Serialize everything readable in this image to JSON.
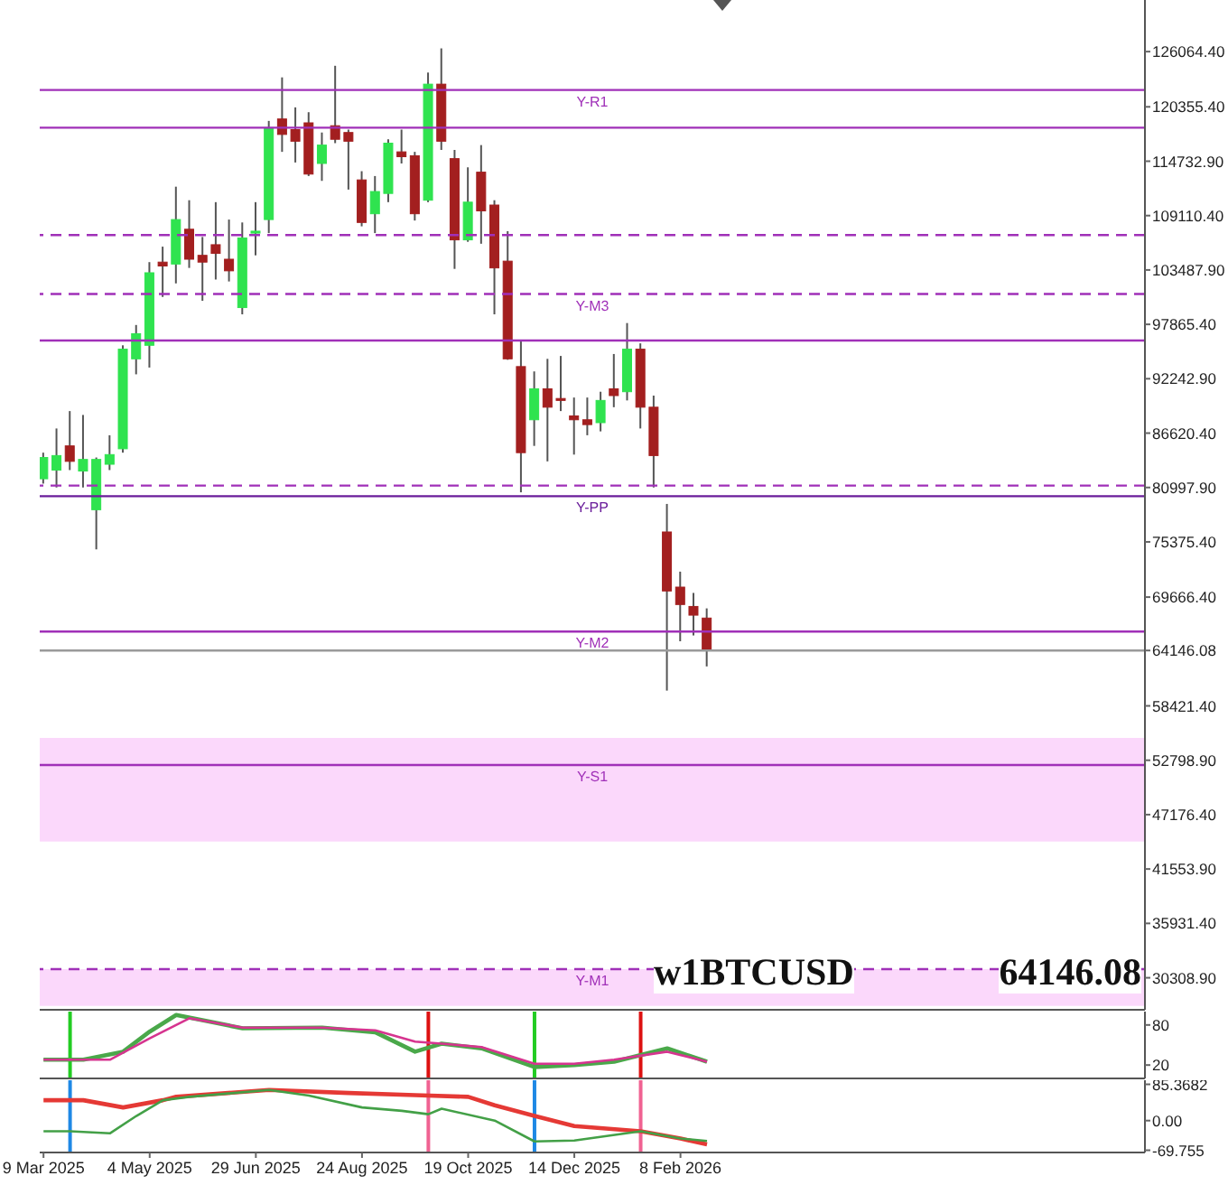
{
  "chart_data": [
    {
      "type": "candlestick",
      "tick_labels": "y",
      "x": [
        "2025-03-09",
        "2025-03-16",
        "2025-03-23",
        "2025-03-30",
        "2025-04-06",
        "2025-04-13",
        "2025-04-20",
        "2025-04-27",
        "2025-05-04",
        "2025-05-11",
        "2025-05-18",
        "2025-05-25",
        "2025-06-01",
        "2025-06-08",
        "2025-06-15",
        "2025-06-22",
        "2025-06-29",
        "2025-07-06",
        "2025-07-13",
        "2025-07-20",
        "2025-07-27",
        "2025-08-03",
        "2025-08-10",
        "2025-08-17",
        "2025-08-24",
        "2025-08-31",
        "2025-09-07",
        "2025-09-14",
        "2025-09-21",
        "2025-09-28",
        "2025-10-05",
        "2025-10-12",
        "2025-10-19",
        "2025-10-26",
        "2025-11-02",
        "2025-11-09",
        "2025-11-16",
        "2025-11-23",
        "2025-11-30",
        "2025-12-07",
        "2025-12-14",
        "2025-12-21",
        "2025-12-28",
        "2026-01-04",
        "2026-01-11",
        "2026-01-18",
        "2026-01-25",
        "2026-02-01",
        "2026-02-08",
        "2026-02-15",
        "2026-02-22"
      ],
      "ohlc": [
        [
          81900,
          84600,
          81400,
          84100
        ],
        [
          82800,
          87100,
          81000,
          84300
        ],
        [
          85300,
          88900,
          82800,
          83700
        ],
        [
          82700,
          88500,
          81000,
          83900
        ],
        [
          78700,
          84100,
          74600,
          83900
        ],
        [
          83400,
          86400,
          82800,
          84400
        ],
        [
          85000,
          95700,
          84600,
          95300
        ],
        [
          94300,
          97800,
          92700,
          96900
        ],
        [
          95700,
          104300,
          93400,
          103200
        ],
        [
          104300,
          105900,
          100700,
          103900
        ],
        [
          104100,
          112100,
          102100,
          108700
        ],
        [
          107700,
          110700,
          103700,
          104600
        ],
        [
          105000,
          106900,
          100300,
          104300
        ],
        [
          106100,
          110500,
          102500,
          105200
        ],
        [
          104600,
          108700,
          102300,
          103400
        ],
        [
          99600,
          108400,
          98900,
          106800
        ],
        [
          107300,
          110500,
          105000,
          107500
        ],
        [
          108700,
          118900,
          107300,
          118200
        ],
        [
          119100,
          123400,
          115700,
          117500
        ],
        [
          118000,
          120300,
          114600,
          116800
        ],
        [
          118700,
          119800,
          113200,
          113400
        ],
        [
          114500,
          117700,
          112700,
          116400
        ],
        [
          118400,
          124600,
          116600,
          117000
        ],
        [
          117700,
          118000,
          111800,
          116800
        ],
        [
          112800,
          113700,
          108000,
          108400
        ],
        [
          109300,
          113200,
          107300,
          111600
        ],
        [
          111400,
          117000,
          110500,
          116600
        ],
        [
          115700,
          118000,
          114500,
          115200
        ],
        [
          115300,
          115700,
          108600,
          109300
        ],
        [
          110700,
          123900,
          110500,
          122700
        ],
        [
          122700,
          126400,
          115900,
          116800
        ],
        [
          115000,
          115900,
          103600,
          106600
        ],
        [
          106600,
          114100,
          106400,
          110500
        ],
        [
          113600,
          116400,
          106200,
          109600
        ],
        [
          110200,
          110700,
          98900,
          103700
        ],
        [
          104400,
          107500,
          94200,
          94300
        ],
        [
          93500,
          96100,
          80500,
          84600
        ],
        [
          88000,
          93000,
          85300,
          91200
        ],
        [
          91200,
          94300,
          83700,
          89300
        ],
        [
          90200,
          94600,
          88900,
          90000
        ],
        [
          88400,
          90300,
          84400,
          88000
        ],
        [
          88000,
          90300,
          86400,
          87500
        ],
        [
          87700,
          90900,
          86800,
          90000
        ],
        [
          91200,
          94800,
          89300,
          90500
        ],
        [
          90900,
          98000,
          90000,
          95300
        ],
        [
          95300,
          95900,
          87100,
          89300
        ],
        [
          89300,
          90500,
          81000,
          84300
        ],
        [
          76400,
          79300,
          60000,
          70300
        ],
        [
          70700,
          72300,
          65100,
          68900
        ],
        [
          68700,
          70100,
          65700,
          67800
        ],
        [
          67500,
          68500,
          62500,
          64146.08
        ]
      ],
      "colors": [
        "#2fe34f",
        "#2fe34f",
        "#a31f1f",
        "#2fe34f",
        "#2fe34f",
        "#2fe34f",
        "#2fe34f",
        "#2fe34f",
        "#2fe34f",
        "#a31f1f",
        "#2fe34f",
        "#a31f1f",
        "#a31f1f",
        "#a31f1f",
        "#a31f1f",
        "#2fe34f",
        "#2fe34f",
        "#2fe34f",
        "#a31f1f",
        "#a31f1f",
        "#a31f1f",
        "#2fe34f",
        "#a31f1f",
        "#a31f1f",
        "#a31f1f",
        "#2fe34f",
        "#2fe34f",
        "#a31f1f",
        "#a31f1f",
        "#2fe34f",
        "#a31f1f",
        "#a31f1f",
        "#2fe34f",
        "#a31f1f",
        "#a31f1f",
        "#a31f1f",
        "#a31f1f",
        "#2fe34f",
        "#a31f1f",
        "#a31f1f",
        "#a31f1f",
        "#a31f1f",
        "#2fe34f",
        "#a31f1f",
        "#2fe34f",
        "#a31f1f",
        "#a31f1f",
        "#a31f1f",
        "#a31f1f",
        "#a31f1f",
        "#a31f1f"
      ],
      "xlim": [
        "2025-03-07",
        "2026-10-11"
      ],
      "ylim": [
        27000,
        131400
      ],
      "yticks": [
        {
          "value": 126064.4,
          "label": "126064.40"
        },
        {
          "value": 120355.4,
          "label": "120355.40"
        },
        {
          "value": 114732.9,
          "label": "114732.90"
        },
        {
          "value": 109110.4,
          "label": "109110.40"
        },
        {
          "value": 103487.9,
          "label": "103487.90"
        },
        {
          "value": 97865.4,
          "label": "97865.40"
        },
        {
          "value": 92242.9,
          "label": "92242.90"
        },
        {
          "value": 86620.4,
          "label": "86620.40"
        },
        {
          "value": 80997.9,
          "label": "80997.90"
        },
        {
          "value": 75375.4,
          "label": "75375.40"
        },
        {
          "value": 69666.4,
          "label": "69666.40"
        },
        {
          "value": 64146.08,
          "label": "64146.08"
        },
        {
          "value": 58421.4,
          "label": "58421.40"
        },
        {
          "value": 52798.9,
          "label": "52798.90"
        },
        {
          "value": 47176.4,
          "label": "47176.40"
        },
        {
          "value": 41553.9,
          "label": "41553.90"
        },
        {
          "value": 35931.4,
          "label": "35931.40"
        },
        {
          "value": 30308.9,
          "label": "30308.90"
        }
      ],
      "bands": [
        {
          "axis": "y",
          "from": 44400,
          "to": 55100,
          "color": "#fbd8fb"
        },
        {
          "axis": "y",
          "from": 27400,
          "to": 31200,
          "color": "#fbd8fb"
        }
      ],
      "ref_lines": [
        {
          "axis": "y",
          "value": 122100,
          "label": "Y-R1",
          "color": "#a030b8",
          "line_style": "solid"
        },
        {
          "axis": "y",
          "value": 118200,
          "color": "#a030b8",
          "line_style": "solid"
        },
        {
          "axis": "y",
          "value": 107100,
          "color": "#a030b8",
          "line_style": "dashed"
        },
        {
          "axis": "y",
          "value": 101000,
          "label": "Y-M3",
          "color": "#a030b8",
          "line_style": "dashed"
        },
        {
          "axis": "y",
          "value": 96200,
          "color": "#a030b8",
          "line_style": "solid"
        },
        {
          "axis": "y",
          "value": 81200,
          "color": "#a030b8",
          "line_style": "dashed"
        },
        {
          "axis": "y",
          "value": 80100,
          "label": "Y-PP",
          "color": "#6a1d9a",
          "line_style": "solid"
        },
        {
          "axis": "y",
          "value": 66100,
          "label": "Y-M2",
          "color": "#a030b8",
          "line_style": "solid"
        },
        {
          "axis": "y",
          "value": 64146.08,
          "color": "#9a9a9a",
          "line_style": "solid"
        },
        {
          "axis": "y",
          "value": 52300,
          "label": "Y-S1",
          "color": "#a030b8",
          "line_style": "solid"
        },
        {
          "axis": "y",
          "value": 31200,
          "label": "Y-M1",
          "color": "#a030b8",
          "line_style": "dashed"
        }
      ],
      "annotations": [
        "w1BTCUSD",
        "64146.08"
      ]
    },
    {
      "type": "line",
      "tick_labels": "y",
      "xlim": [
        "2025-03-07",
        "2026-10-11"
      ],
      "ylim": [
        0,
        100
      ],
      "yticks": [
        20,
        80
      ],
      "series": [
        {
          "color": "#4aa84a",
          "x": [
            "2025-03-09",
            "2025-03-30",
            "2025-04-20",
            "2025-05-04",
            "2025-05-18",
            "2025-06-08",
            "2025-06-22",
            "2025-08-03",
            "2025-08-31",
            "2025-09-21",
            "2025-10-05",
            "2025-10-26",
            "2025-11-23",
            "2025-12-14",
            "2026-01-04",
            "2026-02-01",
            "2026-02-22"
          ],
          "values": [
            28,
            28,
            40,
            70,
            95,
            83,
            75,
            76,
            69,
            40,
            52,
            45,
            17,
            20,
            25,
            45,
            25
          ]
        },
        {
          "color": "#d6348f",
          "x": [
            "2025-03-09",
            "2025-04-13",
            "2025-05-04",
            "2025-05-25",
            "2025-06-22",
            "2025-08-03",
            "2025-08-31",
            "2025-09-21",
            "2025-10-05",
            "2025-10-26",
            "2025-11-23",
            "2025-12-14",
            "2026-01-04",
            "2026-02-01",
            "2026-02-22"
          ],
          "values": [
            28,
            28,
            60,
            90,
            76,
            76,
            72,
            55,
            52,
            47,
            22,
            22,
            28,
            40,
            25
          ]
        }
      ],
      "ref_lines": [
        {
          "axis": "x",
          "value": "2025-03-23",
          "color": "#22cc22"
        },
        {
          "axis": "x",
          "value": "2025-09-28",
          "color": "#dd1111"
        },
        {
          "axis": "x",
          "value": "2025-11-23",
          "color": "#22cc22"
        },
        {
          "axis": "x",
          "value": "2026-01-18",
          "color": "#dd1111"
        }
      ]
    },
    {
      "type": "line",
      "xlim": [
        "2025-03-07",
        "2026-10-11"
      ],
      "ylim": [
        -75,
        95
      ],
      "yticks": [
        {
          "value": 85.3682,
          "label": "85.3682"
        },
        {
          "value": 0,
          "label": "0.00"
        },
        {
          "value": -69.755,
          "label": "-69.755"
        }
      ],
      "xticks": [
        {
          "value": "2025-03-09",
          "label": "9 Mar 2025"
        },
        {
          "value": "2025-05-04",
          "label": "4 May 2025"
        },
        {
          "value": "2025-06-29",
          "label": "29 Jun 2025"
        },
        {
          "value": "2025-08-24",
          "label": "24 Aug 2025"
        },
        {
          "value": "2025-10-19",
          "label": "19 Oct 2025"
        },
        {
          "value": "2025-12-14",
          "label": "14 Dec 2025"
        },
        {
          "value": "2026-02-08",
          "label": "8 Feb 2026"
        }
      ],
      "series": [
        {
          "color": "#e53935",
          "x": [
            "2025-03-09",
            "2025-03-30",
            "2025-04-20",
            "2025-05-11",
            "2025-05-18",
            "2025-07-06",
            "2025-08-17",
            "2025-09-21",
            "2025-10-19",
            "2025-11-02",
            "2025-11-23",
            "2025-12-14",
            "2026-01-18",
            "2026-02-08",
            "2026-02-22"
          ],
          "values": [
            48,
            48,
            31,
            48,
            56,
            72,
            65,
            60,
            56,
            36,
            11,
            -13,
            -25,
            -42,
            -56
          ]
        },
        {
          "color": "#43a047",
          "x": [
            "2025-03-09",
            "2025-03-23",
            "2025-04-13",
            "2025-04-27",
            "2025-05-11",
            "2025-05-25",
            "2025-07-06",
            "2025-07-27",
            "2025-08-24",
            "2025-09-14",
            "2025-09-28",
            "2025-10-05",
            "2025-11-02",
            "2025-11-23",
            "2025-12-14",
            "2026-01-18",
            "2026-02-08",
            "2026-02-22"
          ],
          "values": [
            -25,
            -25,
            -30,
            11,
            48,
            56,
            72,
            59,
            31,
            23,
            15,
            28,
            0,
            -49,
            -47,
            -25,
            -42,
            -48
          ]
        }
      ],
      "ref_lines": [
        {
          "axis": "x",
          "value": "2025-03-23",
          "color": "#1e88e5"
        },
        {
          "axis": "x",
          "value": "2025-09-28",
          "color": "#f06292"
        },
        {
          "axis": "x",
          "value": "2025-11-23",
          "color": "#1e88e5"
        },
        {
          "axis": "x",
          "value": "2026-01-18",
          "color": "#f06292"
        }
      ]
    }
  ]
}
